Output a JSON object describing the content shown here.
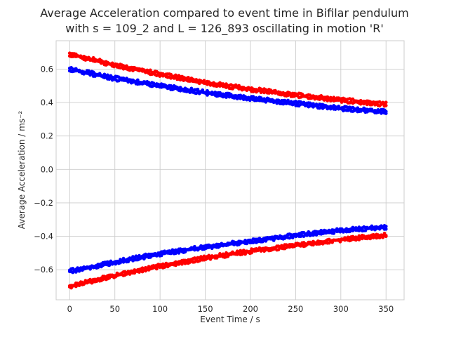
{
  "chart_data": {
    "type": "scatter",
    "title_line1": "Average Acceleration compared to event time in Bifilar pendulum",
    "title_line2": "with s = 109_2 and L = 126_893 oscillating in motion 'R'",
    "xlabel": "Event Time / s",
    "ylabel": "Average Acceleration / ms⁻²",
    "xlim": [
      -15,
      370
    ],
    "ylim": [
      -0.78,
      0.77
    ],
    "xticks": [
      0,
      50,
      100,
      150,
      200,
      250,
      300,
      350
    ],
    "yticks": [
      0.6,
      0.4,
      0.2,
      0.0,
      -0.2,
      -0.4,
      -0.6
    ],
    "ytick_labels": [
      "0.6",
      "0.4",
      "0.2",
      "0.0",
      "−0.2",
      "−0.4",
      "−0.6"
    ],
    "grid": true,
    "legend": "none",
    "series": [
      {
        "color": "#ff0000",
        "x": [
          0,
          50,
          100,
          150,
          200,
          250,
          300,
          350
        ],
        "y": [
          0.69,
          0.625,
          0.57,
          0.52,
          0.48,
          0.445,
          0.415,
          0.39
        ]
      },
      {
        "color": "#0000ff",
        "x": [
          0,
          50,
          100,
          150,
          200,
          250,
          300,
          350
        ],
        "y": [
          0.6,
          0.545,
          0.5,
          0.46,
          0.425,
          0.395,
          0.365,
          0.345
        ]
      },
      {
        "color": "#0000ff",
        "x": [
          0,
          50,
          100,
          150,
          200,
          250,
          300,
          350
        ],
        "y": [
          -0.61,
          -0.555,
          -0.505,
          -0.465,
          -0.43,
          -0.395,
          -0.365,
          -0.345
        ]
      },
      {
        "color": "#ff0000",
        "x": [
          0,
          50,
          100,
          150,
          200,
          250,
          300,
          350
        ],
        "y": [
          -0.7,
          -0.635,
          -0.58,
          -0.53,
          -0.49,
          -0.455,
          -0.42,
          -0.395
        ]
      }
    ]
  }
}
